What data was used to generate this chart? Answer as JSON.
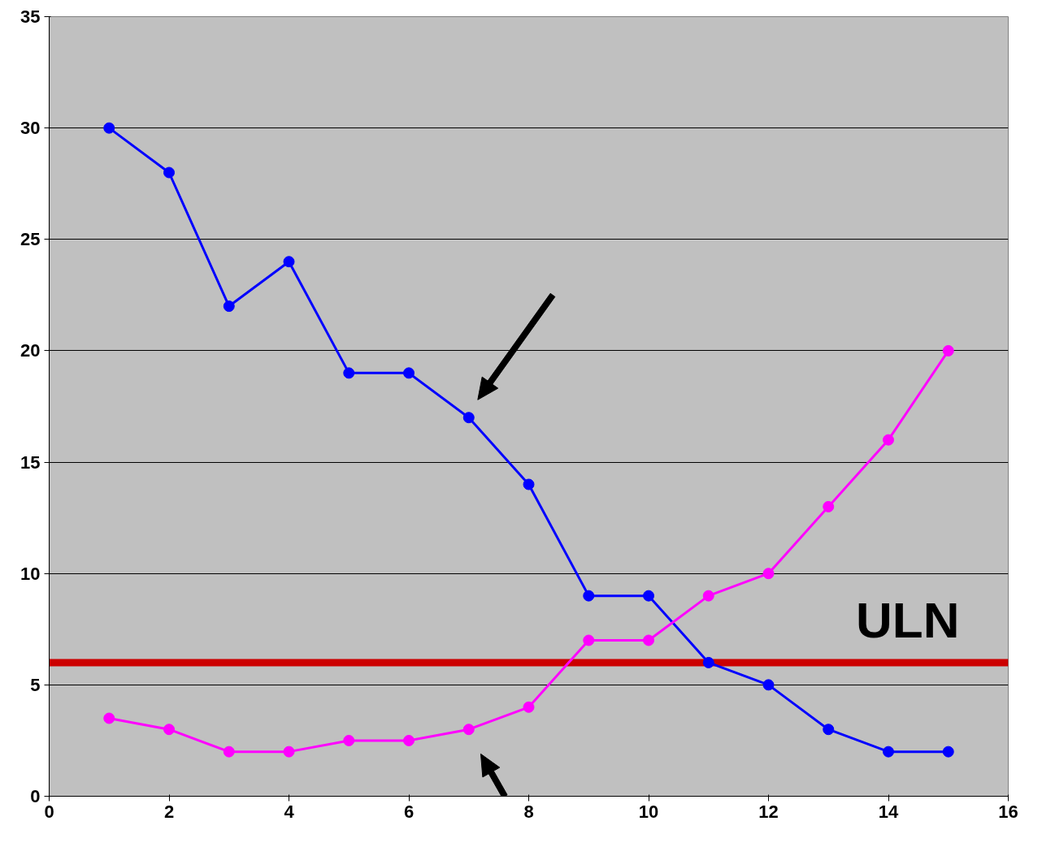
{
  "chart_data": {
    "type": "line",
    "x": [
      1,
      2,
      3,
      4,
      5,
      6,
      7,
      8,
      9,
      10,
      11,
      12,
      13,
      14,
      15
    ],
    "series": [
      {
        "color": "#0000ff",
        "values": [
          30,
          28,
          22,
          24,
          19,
          19,
          17,
          14,
          9,
          9,
          6,
          5,
          3,
          2,
          2
        ]
      },
      {
        "color": "#ff00ff",
        "values": [
          3.5,
          3,
          2,
          2,
          2.5,
          2.5,
          3,
          4,
          7,
          7,
          9,
          10,
          13,
          16,
          20
        ]
      }
    ],
    "xlim": [
      0,
      16
    ],
    "xticks": [
      0,
      2,
      4,
      6,
      8,
      10,
      12,
      14,
      16
    ],
    "ylim": [
      0,
      35
    ],
    "yticks": [
      0,
      5,
      10,
      15,
      20,
      25,
      30,
      35
    ],
    "ref_lines": [
      {
        "axis": "y",
        "value": 6,
        "label": "ULN",
        "color": "#cc0000"
      }
    ],
    "grid": "y",
    "marker": "circle"
  }
}
